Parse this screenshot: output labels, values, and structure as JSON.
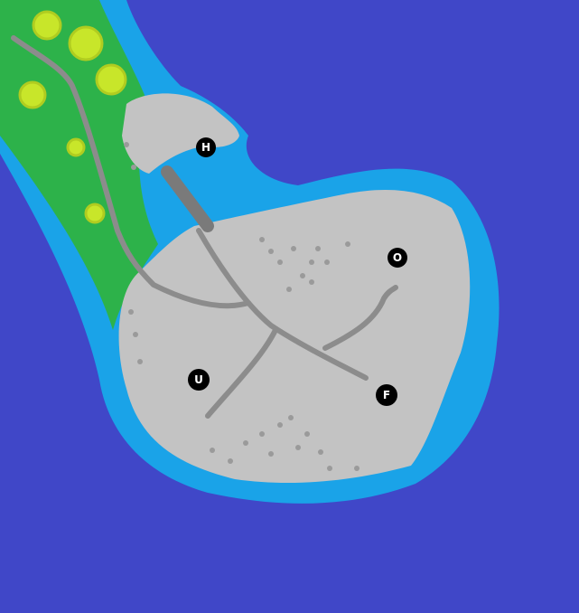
{
  "map": {
    "colors": {
      "deep_water": "#4047c8",
      "shallow_water": "#1aa3e8",
      "grass": "#2db24a",
      "tree": "#c8e62a",
      "rock": "#c3c3c3",
      "path": "#8c8c8c",
      "bridge": "#7a7a7a",
      "marker": "#000000"
    },
    "markers": [
      {
        "id": "H",
        "label": "H"
      },
      {
        "id": "O",
        "label": "O"
      },
      {
        "id": "U",
        "label": "U"
      },
      {
        "id": "F",
        "label": "F"
      }
    ]
  }
}
